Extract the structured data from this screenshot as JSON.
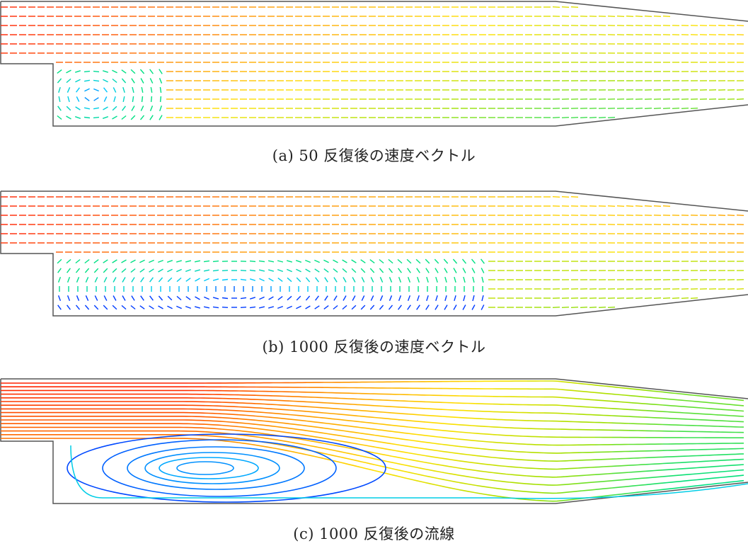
{
  "figure": {
    "panels": [
      {
        "id": "a",
        "caption": "(a) 50 反復後の速度ベクトル",
        "kind": "vectors",
        "recirculation": "weak"
      },
      {
        "id": "b",
        "caption": "(b) 1000 反復後の速度ベクトル",
        "kind": "vectors",
        "recirculation": "developed"
      },
      {
        "id": "c",
        "caption": "(c) 1000 反復後の流線",
        "kind": "streamlines",
        "recirculation": "developed"
      }
    ],
    "colormap": [
      "#0000ff",
      "#00c8ff",
      "#00e080",
      "#a0e000",
      "#ffe000",
      "#ff9000",
      "#ff2000"
    ],
    "wall_color": "#555555"
  }
}
